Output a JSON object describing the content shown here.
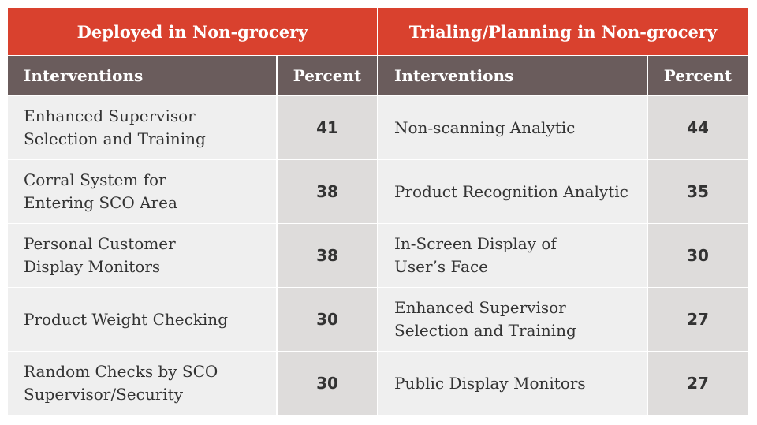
{
  "groups": [
    {
      "title": "Deployed in Non-grocery"
    },
    {
      "title": "Trialing/Planning in Non-grocery"
    }
  ],
  "columns": {
    "interventions": "Interventions",
    "percent": "Percent"
  },
  "rows": [
    {
      "left": {
        "intervention": "Enhanced Supervisor\nSelection and Training",
        "percent": "41"
      },
      "right": {
        "intervention": "Non-scanning Analytic",
        "percent": "44"
      }
    },
    {
      "left": {
        "intervention": "Corral System for\nEntering SCO Area",
        "percent": "38"
      },
      "right": {
        "intervention": "Product Recognition Analytic",
        "percent": "35"
      }
    },
    {
      "left": {
        "intervention": "Personal Customer\nDisplay Monitors",
        "percent": "38"
      },
      "right": {
        "intervention": "In-Screen Display of\nUser’s Face",
        "percent": "30"
      }
    },
    {
      "left": {
        "intervention": "Product Weight Checking",
        "percent": "30"
      },
      "right": {
        "intervention": "Enhanced Supervisor\nSelection and Training",
        "percent": "27"
      }
    },
    {
      "left": {
        "intervention": "Random Checks by SCO\nSupervisor/Security",
        "percent": "30"
      },
      "right": {
        "intervention": "Public Display Monitors",
        "percent": "27"
      }
    }
  ],
  "colors": {
    "group_header_bg": "#d9412e",
    "column_header_bg": "#6a5c5c",
    "row_bg": "#efefef",
    "percent_bg": "#dedcdb",
    "text": "#333333"
  }
}
